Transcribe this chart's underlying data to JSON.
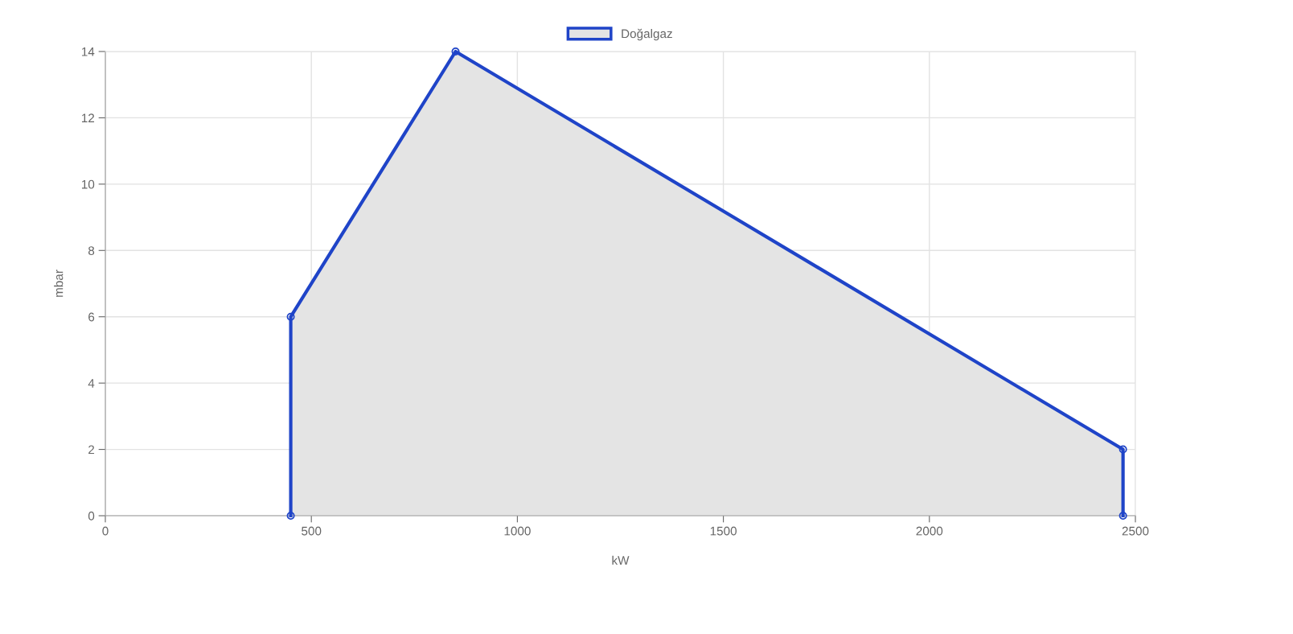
{
  "chart_data": {
    "type": "area",
    "xlabel": "kW",
    "ylabel": "mbar",
    "series": [
      {
        "name": "Doğalgaz",
        "color": "#1f44c8",
        "x": [
          450,
          450,
          850,
          2470,
          2470
        ],
        "values": [
          0,
          6,
          14,
          2,
          0
        ]
      }
    ],
    "xlim": [
      0,
      2500
    ],
    "xticks": [
      0,
      500,
      1000,
      1500,
      2000,
      2500
    ],
    "ylim": [
      0,
      14
    ],
    "yticks": [
      0,
      2,
      4,
      6,
      8,
      10,
      12,
      14
    ],
    "grid": true,
    "legend": "top",
    "marker": "circle",
    "line_style": "solid"
  }
}
